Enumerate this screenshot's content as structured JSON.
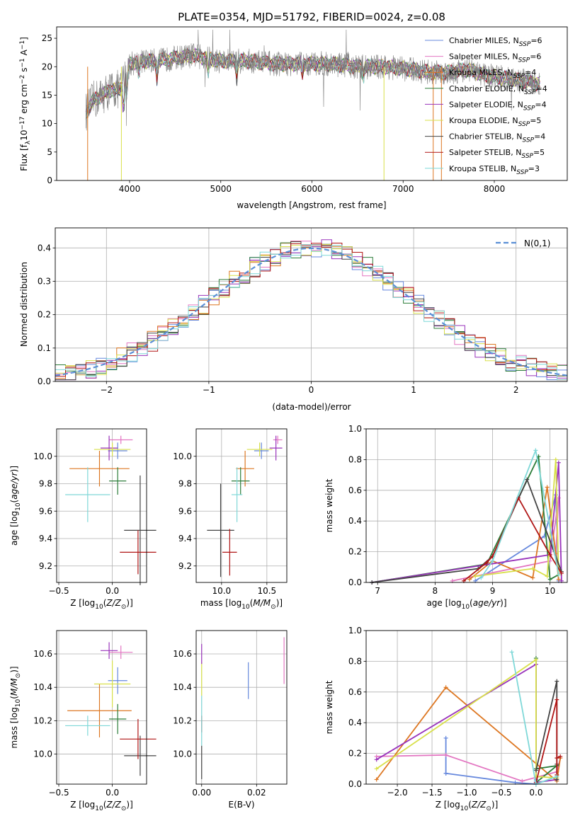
{
  "page": {
    "title": "PLATE=0354, MJD=51792, FIBERID=0024, z=0.08"
  },
  "colors": {
    "Chabrier MILES": "#6688dd",
    "Salpeter MILES": "#e377c2",
    "Kroupa MILES": "#dd7722",
    "Chabrier ELODIE": "#2d7d3a",
    "Salpeter ELODIE": "#9933bb",
    "Kroupa ELODIE": "#d8e04a",
    "Chabrier STELIB": "#444444",
    "Salpeter STELIB": "#b01515",
    "Kroupa STELIB": "#7fd8d8"
  },
  "chart_data": [
    {
      "type": "line",
      "title": "PLATE=0354, MJD=51792, FIBERID=0024, z=0.08",
      "xlabel": "wavelength [Angstrom, rest frame]",
      "ylabel": "Flux [f_λ10^-17 erg cm^-2 s^-1 A^-1]",
      "xlim": [
        3200,
        8800
      ],
      "ylim": [
        0,
        27
      ],
      "xticks": [
        "4000",
        "5000",
        "6000",
        "7000",
        "8000"
      ],
      "yticks": [
        "0",
        "5",
        "10",
        "15",
        "20",
        "25"
      ],
      "legend_placement": "right",
      "legend": [
        "Chabrier MILES, N_SSP=6",
        "Salpeter MILES, N_SSP=6",
        "Kroupa MILES, N_SSP=4",
        "Chabrier ELODIE, N_SSP=4",
        "Salpeter ELODIE, N_SSP=4",
        "Kroupa ELODIE, N_SSP=5",
        "Chabrier STELIB, N_SSP=4",
        "Salpeter STELIB, N_SSP=5",
        "Kroupa STELIB, N_SSP=3"
      ],
      "continuum": {
        "x": [
          3520,
          3600,
          3700,
          3800,
          3900,
          4000,
          4100,
          4300,
          4500,
          4700,
          5000,
          5300,
          5600,
          5900,
          6200,
          6500,
          6800,
          7100,
          7300,
          7500,
          7700,
          7900,
          8100,
          8300,
          8500
        ],
        "y": [
          12,
          14,
          15,
          16,
          16,
          20.5,
          21,
          21,
          21.5,
          22,
          21,
          21,
          20.5,
          20.5,
          20.5,
          20,
          20,
          19.5,
          19,
          19,
          19.5,
          18.5,
          18,
          17.5,
          17
        ]
      }
    },
    {
      "type": "bar",
      "xlabel": "(data-model)/error",
      "ylabel": "Normed distribution",
      "xlim": [
        -2.5,
        2.5
      ],
      "ylim": [
        0,
        0.46
      ],
      "xticks": [
        "−2",
        "−1",
        "0",
        "1",
        "2"
      ],
      "yticks": [
        "0.0",
        "0.1",
        "0.2",
        "0.3",
        "0.4"
      ],
      "grid": true,
      "bin_width": 0.1,
      "reference_label": "N(0,1)",
      "legend_placement": "top-right"
    },
    {
      "type": "scatter",
      "xlabel": "Z [log10(Z/Z⊙)]",
      "ylabel": "age [log10(age/yr)]",
      "xlim": [
        -0.52,
        0.32
      ],
      "ylim": [
        9.08,
        10.2
      ],
      "xticks": [
        "−0.5",
        "0.0"
      ],
      "yticks": [
        "9.2",
        "9.4",
        "9.6",
        "9.8",
        "10.0"
      ],
      "grid": true,
      "points": [
        {
          "name": "Chabrier MILES",
          "x": 0.05,
          "y": 10.04,
          "xerr": 0.09,
          "yerr": 0.06
        },
        {
          "name": "Salpeter MILES",
          "x": 0.08,
          "y": 10.12,
          "xerr": 0.11,
          "yerr": 0.03
        },
        {
          "name": "Kroupa MILES",
          "x": -0.12,
          "y": 9.91,
          "xerr": 0.28,
          "yerr": 0.13
        },
        {
          "name": "Chabrier ELODIE",
          "x": 0.05,
          "y": 9.82,
          "xerr": 0.08,
          "yerr": 0.1
        },
        {
          "name": "Salpeter ELODIE",
          "x": -0.03,
          "y": 10.06,
          "xerr": 0.08,
          "yerr": 0.09
        },
        {
          "name": "Kroupa ELODIE",
          "x": 0.0,
          "y": 10.05,
          "xerr": 0.17,
          "yerr": 0.05
        },
        {
          "name": "Chabrier STELIB",
          "x": 0.26,
          "y": 9.46,
          "xerr": 0.15,
          "yerr": 0.4
        },
        {
          "name": "Salpeter STELIB",
          "x": 0.24,
          "y": 9.3,
          "xerr": 0.17,
          "yerr": 0.16
        },
        {
          "name": "Kroupa STELIB",
          "x": -0.23,
          "y": 9.72,
          "xerr": 0.21,
          "yerr": 0.2
        }
      ]
    },
    {
      "type": "scatter",
      "xlabel": "mass [log10(M/M⊙)]",
      "xlim": [
        9.72,
        10.72
      ],
      "ylim": [
        9.08,
        10.2
      ],
      "xticks": [
        "10.0",
        "10.5"
      ],
      "yticks": [
        "9.2",
        "9.4",
        "9.6",
        "9.8",
        "10.0"
      ],
      "grid": true,
      "points": [
        {
          "name": "Chabrier MILES",
          "x": 10.44,
          "y": 10.04,
          "xerr": 0.08,
          "yerr": 0.06
        },
        {
          "name": "Salpeter MILES",
          "x": 10.62,
          "y": 10.12,
          "xerr": 0.05,
          "yerr": 0.03
        },
        {
          "name": "Kroupa MILES",
          "x": 10.26,
          "y": 9.91,
          "xerr": 0.1,
          "yerr": 0.13
        },
        {
          "name": "Chabrier ELODIE",
          "x": 10.21,
          "y": 9.82,
          "xerr": 0.1,
          "yerr": 0.1
        },
        {
          "name": "Salpeter ELODIE",
          "x": 10.6,
          "y": 10.06,
          "xerr": 0.07,
          "yerr": 0.09
        },
        {
          "name": "Kroupa ELODIE",
          "x": 10.42,
          "y": 10.05,
          "xerr": 0.14,
          "yerr": 0.05
        },
        {
          "name": "Chabrier STELIB",
          "x": 9.99,
          "y": 9.46,
          "xerr": 0.15,
          "yerr": 0.34
        },
        {
          "name": "Salpeter STELIB",
          "x": 10.09,
          "y": 9.3,
          "xerr": 0.08,
          "yerr": 0.17
        },
        {
          "name": "Kroupa STELIB",
          "x": 10.17,
          "y": 9.72,
          "xerr": 0.06,
          "yerr": 0.2
        }
      ]
    },
    {
      "type": "line",
      "xlabel": "age [log10(age/yr)]",
      "ylabel": "mass weight",
      "xlim": [
        6.8,
        10.3
      ],
      "ylim": [
        0,
        1.0
      ],
      "xticks": [
        "7",
        "8",
        "9",
        "10"
      ],
      "yticks": [
        "0.0",
        "0.2",
        "0.4",
        "0.6",
        "0.8",
        "1.0"
      ],
      "grid": true,
      "series": [
        {
          "name": "Chabrier MILES",
          "x": [
            8.7,
            9.9,
            10.1,
            10.15
          ],
          "y": [
            0.01,
            0.3,
            0.57,
            0.01
          ]
        },
        {
          "name": "Salpeter MILES",
          "x": [
            8.3,
            10.0,
            10.15,
            10.1
          ],
          "y": [
            0.01,
            0.14,
            0.55,
            0.18
          ]
        },
        {
          "name": "Kroupa MILES",
          "x": [
            8.6,
            9.0,
            9.7,
            9.95,
            10.1,
            10.15
          ],
          "y": [
            0.02,
            0.14,
            0.03,
            0.62,
            0.19,
            0.02
          ]
        },
        {
          "name": "Chabrier ELODIE",
          "x": [
            6.9,
            8.9,
            9.8,
            10.0,
            10.15
          ],
          "y": [
            0.0,
            0.12,
            0.82,
            0.02,
            0.05
          ]
        },
        {
          "name": "Salpeter ELODIE",
          "x": [
            6.9,
            10.0,
            10.15,
            10.2
          ],
          "y": [
            0.0,
            0.18,
            0.78,
            0.01
          ]
        },
        {
          "name": "Kroupa ELODIE",
          "x": [
            8.7,
            9.7,
            9.95,
            10.1,
            10.15
          ],
          "y": [
            0.04,
            0.09,
            0.04,
            0.8,
            0.05
          ]
        },
        {
          "name": "Chabrier STELIB",
          "x": [
            6.9,
            8.75,
            9.0,
            9.6,
            10.2
          ],
          "y": [
            0.0,
            0.09,
            0.17,
            0.67,
            0.07
          ]
        },
        {
          "name": "Salpeter STELIB",
          "x": [
            8.5,
            8.9,
            9.0,
            9.45,
            10.0,
            10.2
          ],
          "y": [
            0.01,
            0.13,
            0.17,
            0.55,
            0.18,
            0.06
          ]
        },
        {
          "name": "Kroupa STELIB",
          "x": [
            8.8,
            9.0,
            9.75,
            10.15
          ],
          "y": [
            0.03,
            0.14,
            0.86,
            0.05
          ]
        }
      ]
    },
    {
      "type": "scatter",
      "xlabel": "Z [log10(Z/Z⊙)]",
      "ylabel": "mass [log10(M/M⊙)]",
      "xlim": [
        -0.52,
        0.32
      ],
      "ylim": [
        9.82,
        10.74
      ],
      "xticks": [
        "−0.5",
        "0.0"
      ],
      "yticks": [
        "10.0",
        "10.2",
        "10.4",
        "10.6"
      ],
      "grid": true,
      "points": [
        {
          "name": "Chabrier MILES",
          "x": 0.05,
          "y": 10.44,
          "xerr": 0.09,
          "yerr": 0.08
        },
        {
          "name": "Salpeter MILES",
          "x": 0.08,
          "y": 10.61,
          "xerr": 0.11,
          "yerr": 0.04
        },
        {
          "name": "Kroupa MILES",
          "x": -0.12,
          "y": 10.26,
          "xerr": 0.3,
          "yerr": 0.16
        },
        {
          "name": "Chabrier ELODIE",
          "x": 0.05,
          "y": 10.21,
          "xerr": 0.08,
          "yerr": 0.09
        },
        {
          "name": "Salpeter ELODIE",
          "x": -0.03,
          "y": 10.62,
          "xerr": 0.08,
          "yerr": 0.05
        },
        {
          "name": "Kroupa ELODIE",
          "x": 0.0,
          "y": 10.42,
          "xerr": 0.17,
          "yerr": 0.14
        },
        {
          "name": "Chabrier STELIB",
          "x": 0.26,
          "y": 9.99,
          "xerr": 0.15,
          "yerr": 0.12
        },
        {
          "name": "Salpeter STELIB",
          "x": 0.24,
          "y": 10.09,
          "xerr": 0.17,
          "yerr": 0.12
        },
        {
          "name": "Kroupa STELIB",
          "x": -0.23,
          "y": 10.17,
          "xerr": 0.21,
          "yerr": 0.06
        }
      ]
    },
    {
      "type": "scatter",
      "xlabel": "E(B-V)",
      "xlim": [
        -0.002,
        0.031
      ],
      "ylim": [
        9.82,
        10.74
      ],
      "xticks": [
        "0.00",
        "0.02"
      ],
      "yticks": [
        "10.0",
        "10.2",
        "10.4",
        "10.6"
      ],
      "grid": true,
      "points": [
        {
          "name": "Chabrier MILES",
          "x": 0.017,
          "y": 10.44,
          "xerr": 0.0,
          "yerr": 0.11
        },
        {
          "name": "Salpeter MILES",
          "x": 0.03,
          "y": 10.56,
          "xerr": 0.0,
          "yerr": 0.14
        },
        {
          "name": "Kroupa ELODIE",
          "x": 0.0,
          "y": 10.45,
          "xerr": 0.0,
          "yerr": 0.1
        },
        {
          "name": "Salpeter ELODIE",
          "x": 0.0,
          "y": 10.6,
          "xerr": 0.0,
          "yerr": 0.06
        },
        {
          "name": "Chabrier STELIB",
          "x": 0.0,
          "y": 9.95,
          "xerr": 0.0,
          "yerr": 0.1
        },
        {
          "name": "Salpeter STELIB",
          "x": 0.0,
          "y": 10.18,
          "xerr": 0.0,
          "yerr": 0.05
        },
        {
          "name": "Kroupa STELIB",
          "x": 0.0,
          "y": 10.2,
          "xerr": 0.0,
          "yerr": 0.15
        }
      ]
    },
    {
      "type": "line",
      "xlabel": "Z [log10(Z/Z⊙)]",
      "ylabel": "mass weight",
      "xlim": [
        -2.45,
        0.45
      ],
      "ylim": [
        0,
        1.0
      ],
      "xticks": [
        "−2.0",
        "−1.5",
        "−1.0",
        "−0.5",
        "0.0"
      ],
      "yticks": [
        "0.0",
        "0.2",
        "0.4",
        "0.6",
        "0.8",
        "1.0"
      ],
      "grid": true,
      "series": [
        {
          "name": "Chabrier MILES",
          "x": [
            -1.3,
            -1.3,
            -1.3,
            -0.3,
            0.0,
            0.0,
            0.0
          ],
          "y": [
            0.3,
            0.07,
            0.07,
            0.01,
            0.0,
            0.03,
            0.02
          ]
        },
        {
          "name": "Salpeter MILES",
          "x": [
            -2.3,
            -1.3,
            -0.2,
            0.3,
            0.35
          ],
          "y": [
            0.18,
            0.19,
            0.02,
            0.08,
            0.17
          ]
        },
        {
          "name": "Kroupa MILES",
          "x": [
            -2.3,
            -1.3,
            0.3,
            0.35
          ],
          "y": [
            0.03,
            0.63,
            0.02,
            0.17
          ]
        },
        {
          "name": "Chabrier ELODIE",
          "x": [
            0.0,
            0.0,
            0.3,
            0.0
          ],
          "y": [
            0.82,
            0.01,
            0.12,
            0.1
          ]
        },
        {
          "name": "Salpeter ELODIE",
          "x": [
            -2.3,
            0.0,
            0.0,
            0.3
          ],
          "y": [
            0.16,
            0.78,
            0.01,
            0.03
          ]
        },
        {
          "name": "Kroupa ELODIE",
          "x": [
            -2.3,
            0.0,
            0.0,
            0.3
          ],
          "y": [
            0.1,
            0.81,
            0.05,
            0.04
          ]
        },
        {
          "name": "Chabrier STELIB",
          "x": [
            0.0,
            0.3,
            0.3,
            0.3
          ],
          "y": [
            0.09,
            0.67,
            0.13,
            0.03
          ]
        },
        {
          "name": "Salpeter STELIB",
          "x": [
            0.0,
            0.3,
            0.3,
            0.3,
            0.35
          ],
          "y": [
            0.01,
            0.55,
            0.06,
            0.17,
            0.18
          ]
        },
        {
          "name": "Kroupa STELIB",
          "x": [
            -0.35,
            0.0,
            0.3
          ],
          "y": [
            0.86,
            0.0,
            0.05
          ]
        }
      ]
    }
  ]
}
